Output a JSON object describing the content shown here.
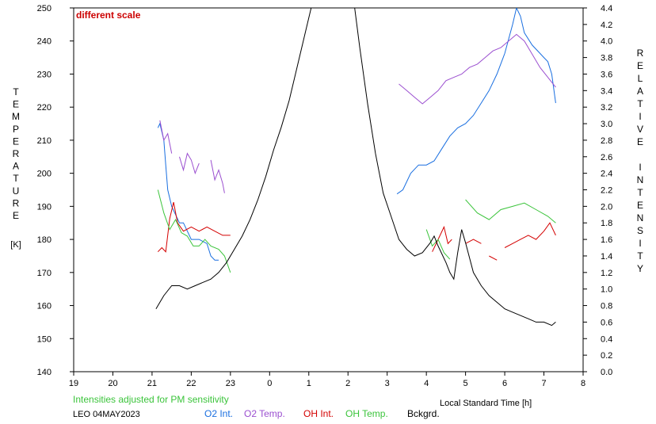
{
  "chart_data": {
    "type": "line",
    "annotation": "different scale",
    "footnote": "Intensities adjusted for PM sensitivity",
    "station_date": "LEO 04MAY2023",
    "xlabel": "Local Standard Time [h]",
    "ylabel_left": "TEMPERATURE",
    "ylabel_left_unit": "[K]",
    "ylabel_right": "RELATIVE INTENSITY",
    "xlim": [
      19,
      32
    ],
    "x_ticks": [
      19,
      20,
      21,
      22,
      23,
      24,
      25,
      26,
      27,
      28,
      29,
      30,
      31,
      32
    ],
    "x_tick_labels": [
      "19",
      "20",
      "21",
      "22",
      "23",
      "0",
      "1",
      "2",
      "3",
      "4",
      "5",
      "6",
      "7",
      "8"
    ],
    "ylim_left": [
      140,
      250
    ],
    "y_left_ticks": [
      140,
      150,
      160,
      170,
      180,
      190,
      200,
      210,
      220,
      230,
      240,
      250
    ],
    "ylim_right": [
      0,
      4.4
    ],
    "y_right_ticks": [
      "0.0",
      "0.2",
      "0.4",
      "0.6",
      "0.8",
      "1.0",
      "1.2",
      "1.4",
      "1.6",
      "1.8",
      "2.0",
      "2.2",
      "2.4",
      "2.6",
      "2.8",
      "3.0",
      "3.2",
      "3.4",
      "3.6",
      "3.8",
      "4.0",
      "4.2",
      "4.4"
    ],
    "series": [
      {
        "name": "O2 Int.",
        "axis": "right",
        "color": "#1a6fe0",
        "segments": [
          [
            [
              21.15,
              2.95
            ],
            [
              21.2,
              3.0
            ],
            [
              21.3,
              2.8
            ],
            [
              21.35,
              2.5
            ],
            [
              21.4,
              2.2
            ],
            [
              21.5,
              2.0
            ],
            [
              21.6,
              1.9
            ],
            [
              21.7,
              1.8
            ],
            [
              21.8,
              1.8
            ],
            [
              22.0,
              1.6
            ],
            [
              22.2,
              1.6
            ],
            [
              22.4,
              1.55
            ],
            [
              22.5,
              1.4
            ],
            [
              22.6,
              1.35
            ],
            [
              22.7,
              1.35
            ]
          ],
          [
            [
              27.25,
              2.15
            ],
            [
              27.4,
              2.2
            ],
            [
              27.6,
              2.4
            ],
            [
              27.8,
              2.5
            ],
            [
              28.0,
              2.5
            ],
            [
              28.2,
              2.55
            ],
            [
              28.4,
              2.7
            ],
            [
              28.6,
              2.85
            ],
            [
              28.8,
              2.95
            ],
            [
              29.0,
              3.0
            ],
            [
              29.2,
              3.1
            ],
            [
              29.4,
              3.25
            ],
            [
              29.6,
              3.4
            ],
            [
              29.8,
              3.6
            ],
            [
              30.0,
              3.85
            ],
            [
              30.2,
              4.2
            ],
            [
              30.3,
              4.4
            ],
            [
              30.4,
              4.3
            ],
            [
              30.5,
              4.1
            ],
            [
              30.7,
              3.95
            ],
            [
              30.9,
              3.85
            ],
            [
              31.0,
              3.8
            ],
            [
              31.1,
              3.75
            ],
            [
              31.2,
              3.6
            ],
            [
              31.3,
              3.25
            ]
          ]
        ]
      },
      {
        "name": "O2 Temp.",
        "axis": "left",
        "color": "#9b4fd0",
        "segments": [
          [
            [
              21.2,
              216
            ],
            [
              21.25,
              213
            ],
            [
              21.3,
              210
            ],
            [
              21.4,
              212
            ],
            [
              21.5,
              206
            ]
          ],
          [
            [
              21.7,
              205
            ],
            [
              21.8,
              201
            ],
            [
              21.9,
              206
            ],
            [
              22.0,
              204
            ],
            [
              22.1,
              200
            ],
            [
              22.2,
              203
            ]
          ],
          [
            [
              22.5,
              204
            ],
            [
              22.6,
              198
            ],
            [
              22.7,
              201
            ],
            [
              22.8,
              197
            ],
            [
              22.85,
              194
            ]
          ],
          [
            [
              27.3,
              227
            ],
            [
              27.5,
              225
            ],
            [
              27.7,
              223
            ],
            [
              27.9,
              221
            ],
            [
              28.1,
              223
            ],
            [
              28.3,
              225
            ],
            [
              28.5,
              228
            ],
            [
              28.7,
              229
            ],
            [
              28.9,
              230
            ],
            [
              29.1,
              232
            ],
            [
              29.3,
              233
            ],
            [
              29.5,
              235
            ],
            [
              29.7,
              237
            ],
            [
              29.9,
              238
            ],
            [
              30.1,
              240
            ],
            [
              30.3,
              242
            ],
            [
              30.5,
              240
            ],
            [
              30.7,
              236
            ],
            [
              30.9,
              232
            ],
            [
              31.1,
              229
            ],
            [
              31.3,
              226
            ]
          ]
        ]
      },
      {
        "name": "OH Int.",
        "axis": "right",
        "color": "#d40000",
        "segments": [
          [
            [
              21.15,
              1.45
            ],
            [
              21.25,
              1.5
            ],
            [
              21.35,
              1.45
            ],
            [
              21.45,
              1.85
            ],
            [
              21.55,
              2.05
            ],
            [
              21.65,
              1.8
            ],
            [
              21.8,
              1.7
            ],
            [
              22.0,
              1.75
            ],
            [
              22.2,
              1.7
            ],
            [
              22.4,
              1.75
            ],
            [
              22.6,
              1.7
            ],
            [
              22.8,
              1.65
            ],
            [
              23.0,
              1.65
            ]
          ],
          [
            [
              28.15,
              1.45
            ],
            [
              28.3,
              1.6
            ],
            [
              28.45,
              1.75
            ],
            [
              28.55,
              1.55
            ],
            [
              28.65,
              1.6
            ]
          ],
          [
            [
              29.0,
              1.55
            ],
            [
              29.2,
              1.6
            ],
            [
              29.4,
              1.55
            ]
          ],
          [
            [
              29.6,
              1.4
            ],
            [
              29.8,
              1.35
            ]
          ],
          [
            [
              30.0,
              1.5
            ],
            [
              30.2,
              1.55
            ],
            [
              30.4,
              1.6
            ],
            [
              30.6,
              1.65
            ],
            [
              30.8,
              1.6
            ],
            [
              31.0,
              1.7
            ],
            [
              31.15,
              1.8
            ],
            [
              31.3,
              1.65
            ]
          ]
        ]
      },
      {
        "name": "OH Temp.",
        "axis": "left",
        "color": "#3bc43b",
        "segments": [
          [
            [
              21.15,
              195
            ],
            [
              21.3,
              188
            ],
            [
              21.45,
              183
            ],
            [
              21.6,
              186
            ],
            [
              21.75,
              182
            ],
            [
              21.9,
              181
            ],
            [
              22.05,
              178
            ],
            [
              22.2,
              178
            ],
            [
              22.35,
              180
            ],
            [
              22.5,
              178
            ],
            [
              22.7,
              177
            ],
            [
              22.85,
              175
            ],
            [
              23.0,
              170
            ]
          ],
          [
            [
              28.0,
              183
            ],
            [
              28.15,
              178
            ],
            [
              28.3,
              180
            ],
            [
              28.45,
              176
            ],
            [
              28.6,
              174
            ]
          ],
          [
            [
              29.0,
              192
            ],
            [
              29.3,
              188
            ],
            [
              29.6,
              186
            ],
            [
              29.9,
              189
            ],
            [
              30.2,
              190
            ],
            [
              30.5,
              191
            ],
            [
              30.8,
              189
            ],
            [
              31.1,
              187
            ],
            [
              31.3,
              185
            ]
          ]
        ]
      },
      {
        "name": "Bckgrd.",
        "axis": "left",
        "color": "#000000",
        "segments": [
          [
            [
              21.1,
              159
            ],
            [
              21.3,
              163
            ],
            [
              21.5,
              166
            ],
            [
              21.7,
              166
            ],
            [
              21.9,
              165
            ],
            [
              22.1,
              166
            ],
            [
              22.3,
              167
            ],
            [
              22.5,
              168
            ],
            [
              22.7,
              170
            ],
            [
              22.9,
              173
            ],
            [
              23.1,
              177
            ],
            [
              23.3,
              181
            ],
            [
              23.5,
              186
            ],
            [
              23.7,
              192
            ],
            [
              23.9,
              199
            ],
            [
              24.1,
              207
            ],
            [
              24.3,
              214
            ],
            [
              24.5,
              222
            ],
            [
              24.7,
              232
            ],
            [
              24.9,
              242
            ],
            [
              25.1,
              252
            ]
          ],
          [
            [
              26.15,
              252
            ],
            [
              26.3,
              238
            ],
            [
              26.5,
              221
            ],
            [
              26.7,
              206
            ],
            [
              26.9,
              194
            ],
            [
              27.1,
              187
            ],
            [
              27.3,
              180
            ],
            [
              27.5,
              177
            ],
            [
              27.7,
              175
            ],
            [
              27.9,
              176
            ],
            [
              28.1,
              179
            ],
            [
              28.2,
              181
            ],
            [
              28.3,
              178
            ],
            [
              28.5,
              173
            ],
            [
              28.6,
              170
            ],
            [
              28.7,
              168
            ],
            [
              28.8,
              176
            ],
            [
              28.9,
              183
            ],
            [
              29.0,
              179
            ],
            [
              29.2,
              170
            ],
            [
              29.4,
              166
            ],
            [
              29.6,
              163
            ],
            [
              29.8,
              161
            ],
            [
              30.0,
              159
            ],
            [
              30.2,
              158
            ],
            [
              30.4,
              157
            ],
            [
              30.6,
              156
            ],
            [
              30.8,
              155
            ],
            [
              31.0,
              155
            ],
            [
              31.2,
              154
            ],
            [
              31.3,
              155
            ]
          ]
        ]
      }
    ]
  }
}
